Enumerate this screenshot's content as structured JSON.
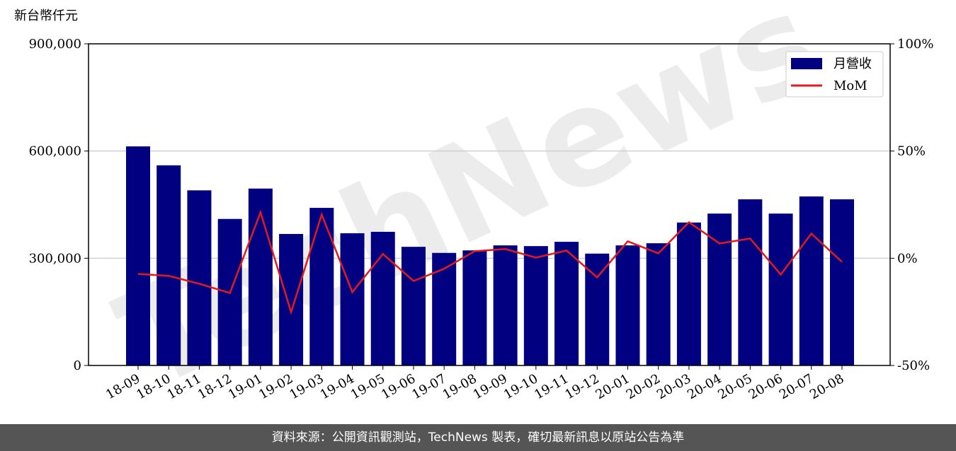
{
  "chart_data": {
    "type": "bar",
    "title": "新台幣仟元",
    "watermark": "TechNews",
    "categories": [
      "18-09",
      "18-10",
      "18-11",
      "18-12",
      "19-01",
      "19-02",
      "19-03",
      "19-04",
      "19-05",
      "19-06",
      "19-07",
      "19-08",
      "19-09",
      "19-10",
      "19-11",
      "19-12",
      "20-01",
      "20-02",
      "20-03",
      "20-04",
      "20-05",
      "20-06",
      "20-07",
      "20-08"
    ],
    "series": [
      {
        "name": "月營收",
        "type": "bar",
        "color": "#000080",
        "values": [
          613000,
          560000,
          490000,
          410000,
          495000,
          368000,
          441000,
          370000,
          374000,
          332000,
          315000,
          322000,
          336000,
          334000,
          346000,
          313000,
          336000,
          342000,
          400000,
          425000,
          465000,
          425000,
          473000,
          465000
        ]
      },
      {
        "name": "MoM",
        "type": "line",
        "axis": "y2",
        "color": "#e31a1c",
        "values": [
          -7.3,
          -8.2,
          -11.9,
          -16.2,
          21.4,
          -25.1,
          20.4,
          -15.8,
          2.0,
          -10.6,
          -4.9,
          3.3,
          4.3,
          0.3,
          3.6,
          -8.9,
          7.9,
          2.3,
          16.8,
          6.9,
          9.2,
          -7.6,
          11.5,
          -1.7
        ]
      }
    ],
    "ylim": [
      0,
      900000
    ],
    "yticks": [
      0,
      {
        "value": 300000,
        "label": "300,000"
      },
      {
        "value": 600000,
        "label": "600,000"
      },
      {
        "value": 900000,
        "label": "900,000"
      }
    ],
    "y2lim": [
      -50,
      100
    ],
    "y2ticks": [
      {
        "value": -50,
        "label": "-50%"
      },
      {
        "value": 0,
        "label": "0%"
      },
      {
        "value": 50,
        "label": "50%"
      },
      {
        "value": 100,
        "label": "100%"
      }
    ],
    "grid": true,
    "legend": "upper right"
  },
  "footer": "資料來源：公開資訊觀測站，TechNews 製表，確切最新訊息以原站公告為準"
}
